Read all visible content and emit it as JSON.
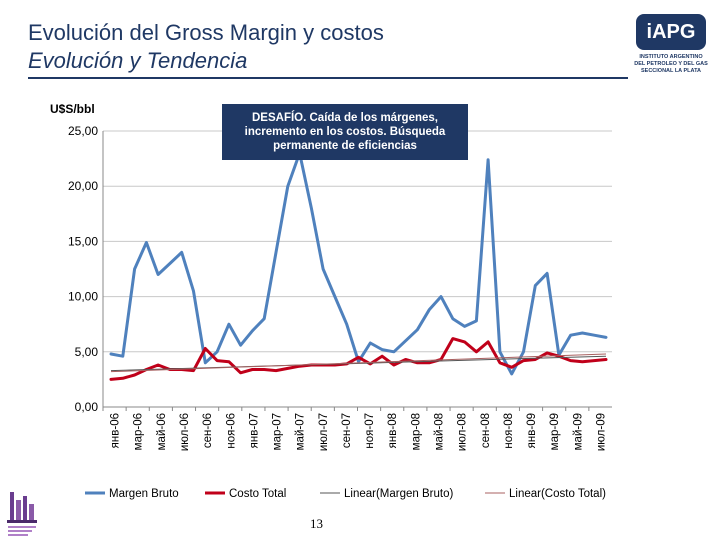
{
  "header": {
    "title": "Evolución del Gross Margin y costos",
    "subtitle": "Evolución y Tendencia"
  },
  "logo": {
    "text": "iAPG",
    "sub1": "INSTITUTO ARGENTINO",
    "sub2": "DEL PETROLEO Y DEL GAS",
    "sub3": "SECCIONAL LA PLATA"
  },
  "callout": {
    "text": "DESAFÍO. Caída de los márgenes, incremento en los costos. Búsqueda permanente de eficiencias"
  },
  "page_number": "13",
  "colors": {
    "margen": "#4f81bd",
    "costo": "#c0001a",
    "trend_margen": "#555555",
    "trend_costo": "#a86060",
    "grid": "#c8c8c8",
    "accent": "#1f3864"
  },
  "chart_data": {
    "type": "line",
    "title": "",
    "ylabel": "U$S/bbl",
    "xlabel": "",
    "ylim": [
      0,
      25
    ],
    "yticks": [
      "0,00",
      "5,00",
      "10,00",
      "15,00",
      "20,00",
      "25,00"
    ],
    "ytick_values": [
      0,
      5,
      10,
      15,
      20,
      25
    ],
    "xtick_labels": [
      "янв-06",
      "мар-06",
      "май-06",
      "июл-06",
      "сен-06",
      "ноя-06",
      "янв-07",
      "мар-07",
      "май-07",
      "июл-07",
      "сен-07",
      "ноя-07",
      "янв-08",
      "мар-08",
      "май-08",
      "июл-08",
      "сен-08",
      "ноя-08",
      "янв-09",
      "мар-09",
      "май-09",
      "июл-09"
    ],
    "series": [
      {
        "name": "Margen Bruto",
        "values": [
          4.8,
          4.6,
          12.5,
          14.9,
          12.0,
          13.0,
          14.0,
          10.5,
          4.0,
          5.0,
          7.5,
          5.6,
          6.9,
          8.0,
          14.0,
          20.0,
          23.0,
          18.0,
          12.5,
          10.0,
          7.5,
          4.1,
          5.8,
          5.2,
          5.0,
          6.0,
          7.0,
          8.8,
          10.0,
          8.0,
          7.3,
          7.8,
          22.4,
          5.0,
          3.0,
          5.0,
          11.0,
          12.1,
          4.7,
          6.5,
          6.7,
          6.5,
          6.3
        ]
      },
      {
        "name": "Costo Total",
        "values": [
          2.5,
          2.6,
          2.9,
          3.4,
          3.8,
          3.4,
          3.4,
          3.3,
          5.3,
          4.2,
          4.1,
          3.1,
          3.4,
          3.4,
          3.3,
          3.5,
          3.7,
          3.8,
          3.8,
          3.8,
          3.9,
          4.5,
          3.9,
          4.6,
          3.8,
          4.3,
          4.0,
          4.0,
          4.3,
          6.2,
          5.9,
          5.0,
          5.9,
          4.0,
          3.6,
          4.2,
          4.3,
          4.9,
          4.6,
          4.2,
          4.1,
          4.2,
          4.3
        ]
      },
      {
        "name": "Linear(Margen Bruto)",
        "values": [
          3.3,
          4.6
        ]
      },
      {
        "name": "Linear(Costo Total)",
        "values": [
          3.2,
          4.8
        ]
      }
    ],
    "legend": [
      "Margen Bruto",
      "Costo Total",
      "Linear(Margen Bruto)",
      "Linear(Costo Total)"
    ],
    "legend_position": "bottom"
  }
}
